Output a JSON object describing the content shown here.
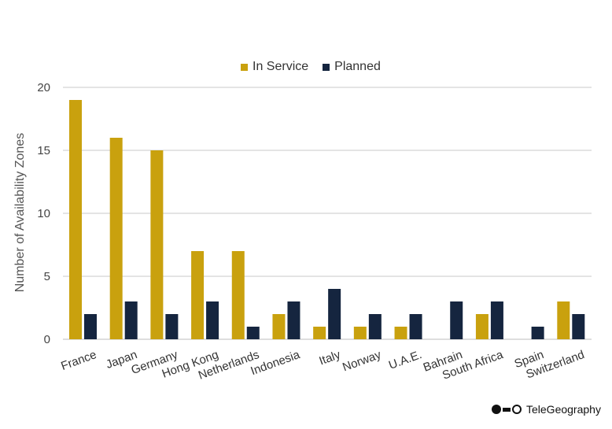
{
  "chart_data": {
    "type": "bar",
    "title": "",
    "xlabel": "",
    "ylabel": "Number of Availability Zones",
    "ylim": [
      0,
      20
    ],
    "yticks": [
      0,
      5,
      10,
      15,
      20
    ],
    "grid": true,
    "legend_position": "top-center",
    "categories": [
      "France",
      "Japan",
      "Germany",
      "Hong Kong",
      "Netherlands",
      "Indonesia",
      "Italy",
      "Norway",
      "U.A.E.",
      "Bahrain",
      "South Africa",
      "Spain",
      "Switzerland"
    ],
    "series": [
      {
        "name": "In Service",
        "color": "#c9a10e",
        "values": [
          19,
          16,
          15,
          7,
          7,
          2,
          1,
          1,
          1,
          0,
          2,
          0,
          3
        ]
      },
      {
        "name": "Planned",
        "color": "#15253f",
        "values": [
          2,
          3,
          2,
          3,
          1,
          3,
          4,
          2,
          2,
          3,
          3,
          1,
          2
        ]
      }
    ]
  },
  "logo": {
    "text": "TeleGeography"
  }
}
